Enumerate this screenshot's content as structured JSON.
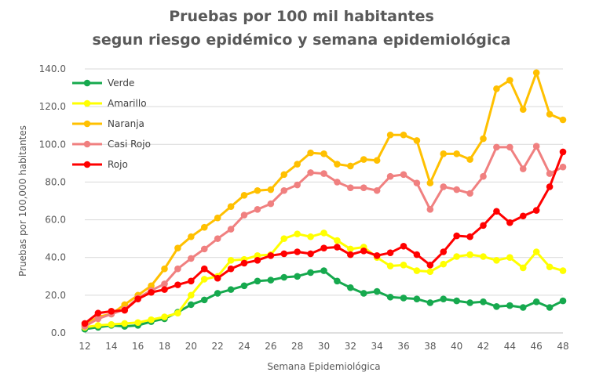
{
  "chart_data": {
    "type": "line",
    "title": "Pruebas por 100 mil habitantes",
    "subtitle": "segun riesgo epidémico y semana epidemiológica",
    "xlabel": "Semana Epidemiológica",
    "ylabel": "Pruebas por 100,000 habitantes",
    "xlim": [
      12,
      48
    ],
    "ylim": [
      0,
      140
    ],
    "x_ticks": [
      12,
      14,
      16,
      18,
      20,
      22,
      24,
      26,
      28,
      30,
      32,
      34,
      36,
      38,
      40,
      42,
      44,
      46,
      48
    ],
    "y_ticks": [
      "0.0",
      "20.0",
      "40.0",
      "60.0",
      "80.0",
      "100.0",
      "120.0",
      "140.0"
    ],
    "grid": "horizontal",
    "legend_position": "top-left",
    "x": [
      12,
      13,
      14,
      15,
      16,
      17,
      18,
      19,
      20,
      21,
      22,
      23,
      24,
      25,
      26,
      27,
      28,
      29,
      30,
      31,
      32,
      33,
      34,
      35,
      36,
      37,
      38,
      39,
      40,
      41,
      42,
      43,
      44,
      45,
      46,
      47,
      48
    ],
    "series": [
      {
        "name": "Verde",
        "color": "#16a94e",
        "values": [
          2,
          3,
          4,
          3.5,
          4,
          6,
          7.5,
          11,
          15,
          17.5,
          21,
          23,
          25,
          27.5,
          28,
          29.5,
          30,
          32,
          33,
          27.5,
          24,
          21,
          22,
          19,
          18.5,
          18,
          16,
          18,
          17,
          16,
          16.5,
          14,
          14.5,
          13.5,
          16.5,
          13.5,
          17
        ]
      },
      {
        "name": "Amarillo",
        "color": "#ffff00",
        "values": [
          3,
          4,
          4.5,
          5,
          5.5,
          7,
          8.5,
          10.5,
          20,
          28.5,
          30,
          38.5,
          39,
          41,
          41.5,
          50,
          52.5,
          51,
          53,
          49,
          44.5,
          45.5,
          40,
          35.5,
          36,
          33,
          32.5,
          36.5,
          40.5,
          41.5,
          40.5,
          38.5,
          40,
          34.5,
          43,
          35,
          33
        ]
      },
      {
        "name": "Naranja",
        "color": "#ffc000",
        "values": [
          4,
          8.5,
          10,
          15,
          20,
          25,
          34,
          45,
          51,
          56,
          61,
          67,
          73,
          75.5,
          76,
          84,
          89.5,
          95.5,
          95,
          89.5,
          88.5,
          92,
          91.5,
          105,
          105,
          102,
          79.5,
          95,
          95,
          92,
          103,
          129.5,
          134,
          118.5,
          138,
          116,
          113
        ]
      },
      {
        "name": "Casi Rojo",
        "color": "#f08080",
        "values": [
          3.5,
          7.5,
          10,
          12.5,
          18.5,
          22.5,
          26,
          34,
          39.5,
          44.5,
          50,
          55,
          62.5,
          65.5,
          68.5,
          75.5,
          78.5,
          85,
          84.5,
          80,
          77,
          77,
          75.5,
          83,
          84,
          79.5,
          65.5,
          77.5,
          76,
          74,
          83,
          98.5,
          98.5,
          87,
          99,
          84.5,
          88
        ]
      },
      {
        "name": "Rojo",
        "color": "#ff0000",
        "values": [
          5,
          10.5,
          11.5,
          12,
          18,
          21.5,
          23,
          25.5,
          27.5,
          34,
          29,
          34,
          37,
          38.5,
          41,
          42,
          43,
          42,
          45,
          45.5,
          41.5,
          43.5,
          41,
          42.5,
          46,
          41.5,
          36,
          43,
          51.5,
          51,
          57,
          64.5,
          58.5,
          62,
          65,
          77.5,
          96
        ]
      }
    ]
  }
}
